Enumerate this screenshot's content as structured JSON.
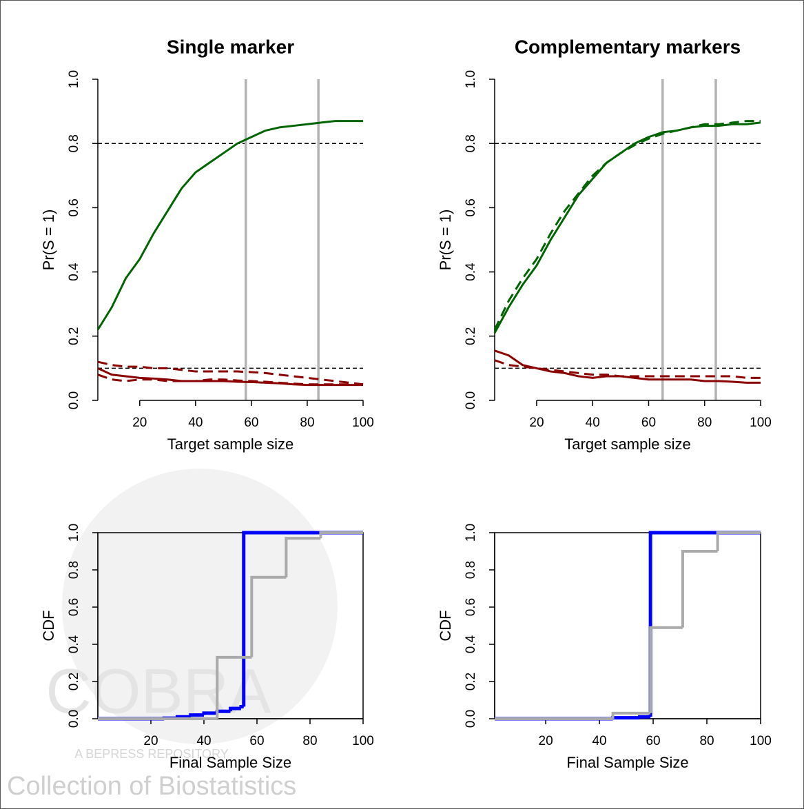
{
  "watermark": {
    "lines": [
      "COBRA",
      "A BEPRESS REPOSITORY",
      "Collection of Biostatistics"
    ]
  },
  "chart_data": [
    {
      "type": "line",
      "title": "Single marker",
      "xlabel": "Target sample size",
      "ylabel": "Pr(S = 1)",
      "x": [
        5,
        10,
        15,
        20,
        25,
        30,
        35,
        40,
        45,
        50,
        55,
        60,
        65,
        70,
        75,
        80,
        85,
        90,
        95,
        100
      ],
      "series": [
        {
          "color": "#006400",
          "dash": false,
          "values": [
            0.22,
            0.29,
            0.38,
            0.44,
            0.52,
            0.59,
            0.66,
            0.71,
            0.74,
            0.77,
            0.8,
            0.82,
            0.84,
            0.85,
            0.855,
            0.86,
            0.865,
            0.87,
            0.87,
            0.87
          ]
        },
        {
          "color": "#8b0000",
          "dash": false,
          "values": [
            0.1,
            0.08,
            0.075,
            0.07,
            0.068,
            0.065,
            0.06,
            0.06,
            0.06,
            0.06,
            0.058,
            0.057,
            0.055,
            0.053,
            0.05,
            0.048,
            0.048,
            0.048,
            0.048,
            0.048
          ]
        },
        {
          "color": "#8b0000",
          "dash": true,
          "values": [
            0.12,
            0.11,
            0.105,
            0.105,
            0.1,
            0.1,
            0.095,
            0.09,
            0.09,
            0.09,
            0.09,
            0.088,
            0.085,
            0.08,
            0.075,
            0.07,
            0.065,
            0.06,
            0.055,
            0.05
          ]
        },
        {
          "color": "#8b0000",
          "dash": true,
          "values": [
            0.08,
            0.065,
            0.06,
            0.065,
            0.065,
            0.06,
            0.06,
            0.06,
            0.065,
            0.065,
            0.062,
            0.06,
            0.058,
            0.055,
            0.052,
            0.05,
            0.05,
            0.05,
            0.05,
            0.05
          ]
        }
      ],
      "hlines": [
        0.8,
        0.1
      ],
      "vlines": [
        58,
        84
      ],
      "xlim": [
        5,
        100
      ],
      "xticks": [
        20,
        40,
        60,
        80,
        100
      ],
      "ylim": [
        0,
        1
      ],
      "yticks": [
        {
          "value": 0,
          "label": "0.0"
        },
        0.2,
        0.4,
        0.6,
        0.8,
        {
          "value": 1,
          "label": "1.0"
        }
      ],
      "box": false
    },
    {
      "type": "line",
      "title": "Complementary markers",
      "xlabel": "Target sample size",
      "ylabel": "Pr(S = 1)",
      "x": [
        5,
        10,
        15,
        20,
        25,
        30,
        35,
        40,
        45,
        50,
        55,
        60,
        65,
        70,
        75,
        80,
        85,
        90,
        95,
        100
      ],
      "series": [
        {
          "color": "#006400",
          "dash": false,
          "values": [
            0.21,
            0.29,
            0.36,
            0.42,
            0.5,
            0.57,
            0.64,
            0.69,
            0.74,
            0.77,
            0.8,
            0.82,
            0.835,
            0.84,
            0.85,
            0.855,
            0.855,
            0.86,
            0.86,
            0.865
          ]
        },
        {
          "color": "#006400",
          "dash": true,
          "values": [
            0.22,
            0.31,
            0.38,
            0.44,
            0.52,
            0.59,
            0.645,
            0.7,
            0.74,
            0.77,
            0.795,
            0.815,
            0.83,
            0.84,
            0.85,
            0.86,
            0.86,
            0.865,
            0.87,
            0.87
          ]
        },
        {
          "color": "#8b0000",
          "dash": false,
          "values": [
            0.155,
            0.14,
            0.11,
            0.1,
            0.09,
            0.085,
            0.075,
            0.07,
            0.075,
            0.075,
            0.07,
            0.065,
            0.065,
            0.065,
            0.065,
            0.06,
            0.06,
            0.058,
            0.055,
            0.055
          ]
        },
        {
          "color": "#8b0000",
          "dash": true,
          "values": [
            0.125,
            0.11,
            0.105,
            0.1,
            0.095,
            0.09,
            0.085,
            0.08,
            0.08,
            0.075,
            0.075,
            0.075,
            0.075,
            0.075,
            0.075,
            0.075,
            0.075,
            0.075,
            0.07,
            0.07
          ]
        }
      ],
      "hlines": [
        0.8,
        0.1
      ],
      "vlines": [
        65,
        84
      ],
      "xlim": [
        5,
        100
      ],
      "xticks": [
        20,
        40,
        60,
        80,
        100
      ],
      "ylim": [
        0,
        1
      ],
      "yticks": [
        {
          "value": 0,
          "label": "0.0"
        },
        0.2,
        0.4,
        0.6,
        0.8,
        {
          "value": 1,
          "label": "1.0"
        }
      ],
      "box": false
    },
    {
      "type": "line",
      "step": true,
      "xlabel": "Final Sample Size",
      "ylabel": "CDF",
      "series": [
        {
          "color": "#0000ff",
          "width": 5,
          "x": [
            0,
            25,
            30,
            35,
            40,
            45,
            50,
            54,
            55,
            100
          ],
          "values": [
            0,
            0.003,
            0.01,
            0.02,
            0.03,
            0.04,
            0.055,
            0.065,
            1,
            1
          ]
        },
        {
          "color": "#aaaaaa",
          "width": 4,
          "x": [
            0,
            45,
            58,
            71,
            84,
            100
          ],
          "values": [
            0,
            0.33,
            0.76,
            0.97,
            1,
            1
          ]
        }
      ],
      "xlim": [
        0,
        100
      ],
      "xticks": [
        20,
        40,
        60,
        80,
        100
      ],
      "ylim": [
        0,
        1
      ],
      "yticks": [
        {
          "value": 0,
          "label": "0.0"
        },
        0.2,
        0.4,
        0.6,
        0.8,
        {
          "value": 1,
          "label": "1.0"
        }
      ],
      "box": true
    },
    {
      "type": "line",
      "step": true,
      "xlabel": "Final Sample Size",
      "ylabel": "CDF",
      "series": [
        {
          "color": "#0000ff",
          "width": 5,
          "x": [
            1,
            45,
            55,
            59,
            100
          ],
          "values": [
            0,
            0.005,
            0.01,
            1,
            1
          ]
        },
        {
          "color": "#aaaaaa",
          "width": 4,
          "x": [
            1,
            45,
            59,
            71,
            84,
            100
          ],
          "values": [
            0,
            0.03,
            0.49,
            0.9,
            1,
            1
          ]
        }
      ],
      "xlim": [
        1,
        100
      ],
      "xticks": [
        20,
        40,
        60,
        80,
        100
      ],
      "ylim": [
        0,
        1
      ],
      "yticks": [
        {
          "value": 0,
          "label": "0.0"
        },
        0.2,
        0.4,
        0.6,
        0.8,
        {
          "value": 1,
          "label": "1.0"
        }
      ],
      "box": true
    }
  ]
}
